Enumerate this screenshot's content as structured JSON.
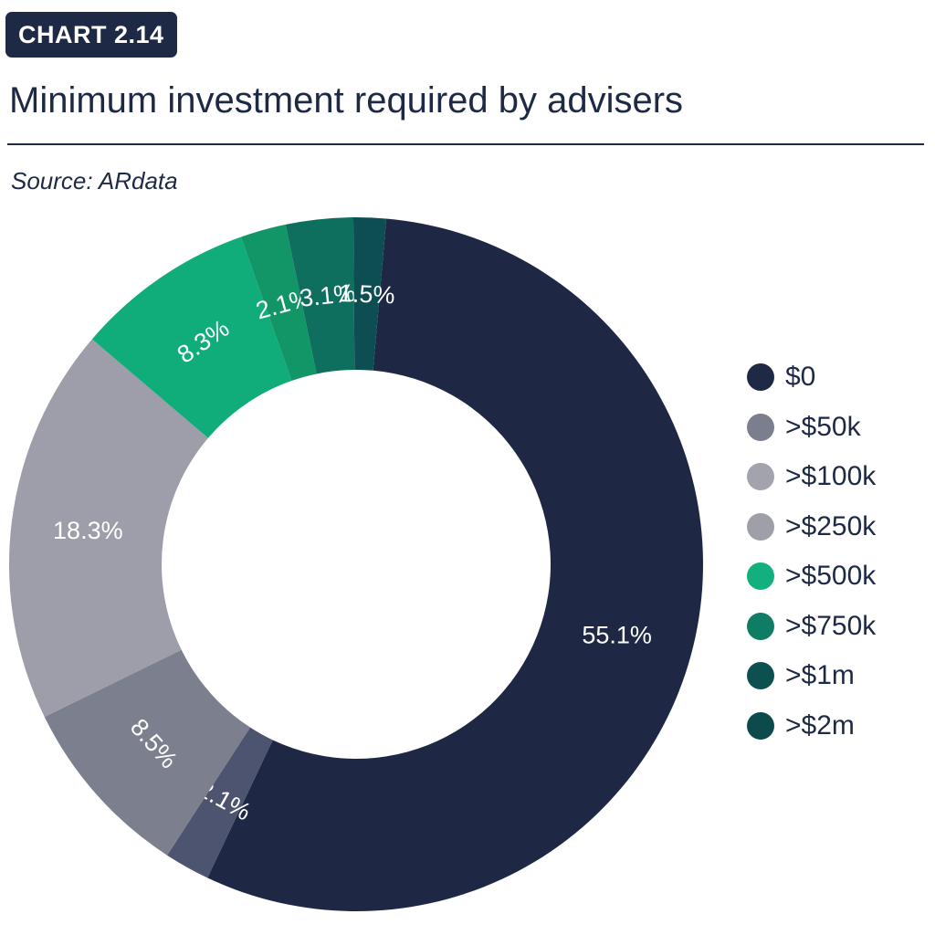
{
  "header": {
    "badge": "CHART 2.14",
    "title": "Minimum investment required by advisers",
    "source": "Source: ARdata"
  },
  "chart_data": {
    "type": "pie",
    "donut": true,
    "legend_position": "right",
    "slices": [
      {
        "label": "$0",
        "value": 55.1,
        "display": "55.1%",
        "color": "#1e2845"
      },
      {
        "label": ">$50k",
        "value": 2.1,
        "display": "2.1%",
        "color": "#4c5470"
      },
      {
        "label": ">$100k",
        "value": 8.5,
        "display": "8.5%",
        "color": "#7c7f8e"
      },
      {
        "label": ">$250k",
        "value": 18.3,
        "display": "18.3%",
        "color": "#9d9ea9"
      },
      {
        "label": ">$500k",
        "value": 8.3,
        "display": "8.3%",
        "color": "#10ac7a"
      },
      {
        "label": ">$750k",
        "value": 2.1,
        "display": "2.1%",
        "color": "#129667"
      },
      {
        "label": ">$1m",
        "value": 3.1,
        "display": "3.1%",
        "color": "#0f6f5e"
      },
      {
        "label": ">$2m",
        "value": 1.5,
        "display": "1.5%",
        "color": "#0d4e52"
      }
    ],
    "legend_colors": [
      "#1e2a45",
      "#7b7e8c",
      "#a2a3ad",
      "#9e9fa9",
      "#12b07e",
      "#0f7c64",
      "#0d5050",
      "#0c4a4c"
    ]
  }
}
